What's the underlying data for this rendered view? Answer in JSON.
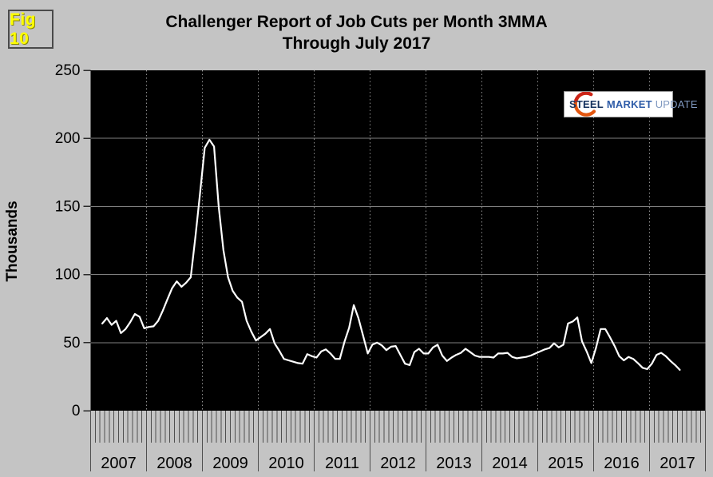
{
  "fig_label": "Fig 10",
  "title": {
    "line1": "Challenger Report of Job Cuts per Month 3MMA",
    "line2": "Through July 2017"
  },
  "logo": {
    "word1": "STEEL",
    "word2": "MARKET",
    "word3": "UPDATE"
  },
  "colors": {
    "background": "#c4c4c4",
    "plot_background": "#000000",
    "line": "#ffffff",
    "h_gridline": "#7f7f7f",
    "v_gridline": "#8f8f8f",
    "tick": "#4f4f4f",
    "fig_label_yellow": "#ffff00",
    "logo_navy": "#16325e",
    "logo_blue": "#2e5ca8",
    "logo_lightblue": "#8099c0",
    "logo_orange": "#e3560f",
    "logo_red": "#cc2418"
  },
  "chart_data": {
    "type": "line",
    "title": "Challenger Report of Job Cuts per Month 3MMA Through July 2017",
    "xlabel": "",
    "ylabel": "Thousands",
    "unit": "thousands of job cuts",
    "ylim": [
      0,
      250
    ],
    "y_ticks": [
      0,
      50,
      100,
      150,
      200,
      250
    ],
    "x_years": [
      "2007",
      "2008",
      "2009",
      "2010",
      "2011",
      "2012",
      "2013",
      "2014",
      "2015",
      "2016",
      "2017"
    ],
    "x_frequency": "monthly",
    "x_start": "2007-03",
    "x_end": "2017-07",
    "grid": {
      "horizontal": "solid",
      "vertical": "dotted-at-year-boundaries"
    },
    "legend": "none",
    "series": [
      {
        "name": "Job Cuts per Month 3MMA",
        "values": [
          64,
          68,
          63,
          66,
          57,
          60,
          65,
          71,
          69,
          60.5,
          61.5,
          62,
          66,
          73.5,
          82,
          90,
          95,
          91,
          94,
          98,
          128,
          160,
          193,
          199,
          194,
          150,
          118,
          98,
          88,
          83,
          80,
          66,
          58,
          51.5,
          54,
          56.5,
          60,
          49.5,
          44,
          38,
          37,
          36,
          35,
          34.5,
          41.5,
          40,
          39,
          43.5,
          45,
          42,
          38,
          38,
          50.5,
          61,
          77.5,
          68,
          55,
          42,
          48.5,
          50,
          48,
          44.5,
          47,
          47.5,
          41,
          34.5,
          33.5,
          43,
          45.5,
          42,
          42,
          46.5,
          48.5,
          40.5,
          36.5,
          39,
          41,
          42.5,
          45.5,
          43,
          40.5,
          39.5,
          39.5,
          39.5,
          39,
          42,
          42,
          42.5,
          39.5,
          38.5,
          39,
          39.5,
          40.5,
          42,
          43.5,
          45,
          46,
          49.5,
          46.5,
          48.5,
          64,
          65.5,
          68.5,
          51,
          43.5,
          35,
          46,
          60,
          60,
          54,
          47.5,
          40,
          37,
          39.5,
          38,
          35,
          31.5,
          30.5,
          34.5,
          41,
          42.5,
          40,
          36.5,
          33.5,
          30
        ]
      }
    ]
  }
}
